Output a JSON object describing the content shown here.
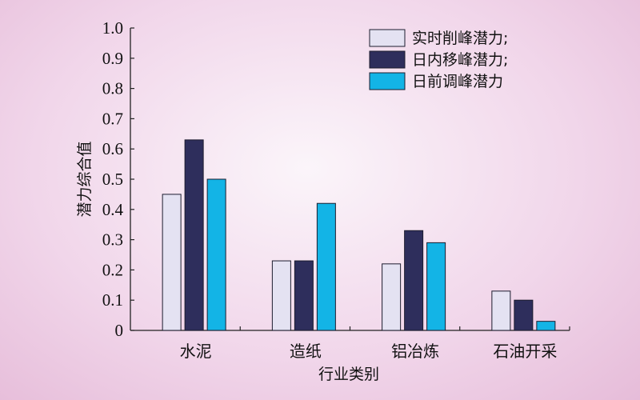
{
  "chart_data": {
    "type": "bar",
    "title": "",
    "xlabel": "行业类别",
    "ylabel": "潜力综合值",
    "ylim": [
      0,
      1.0
    ],
    "yticks": [
      "0",
      "0.1",
      "0.2",
      "0.3",
      "0.4",
      "0.5",
      "0.6",
      "0.7",
      "0.8",
      "0.9",
      "1.0"
    ],
    "grid": false,
    "legend_position": "top-right",
    "categories": [
      "水泥",
      "造纸",
      "铝冶炼",
      "石油开采"
    ],
    "series": [
      {
        "name": "实时削峰潜力;",
        "color": "#e4e2f2",
        "values": [
          0.45,
          0.23,
          0.22,
          0.13
        ]
      },
      {
        "name": "日内移峰潜力;",
        "color": "#2e2e5c",
        "values": [
          0.63,
          0.23,
          0.33,
          0.1
        ]
      },
      {
        "name": "日前调峰潜力",
        "color": "#13b4e6",
        "values": [
          0.5,
          0.42,
          0.29,
          0.03
        ]
      }
    ]
  }
}
